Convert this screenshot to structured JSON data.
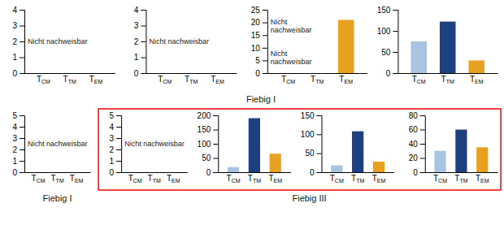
{
  "chart_data": [
    {
      "type": "bar",
      "categories": [
        "TCM",
        "TTM",
        "TEM"
      ],
      "ylim": [
        0,
        4
      ],
      "yticks": [
        0,
        1,
        2,
        3,
        4
      ],
      "annotations": [
        "Nicht nachweisbar"
      ],
      "xlabel": "Fiebig I"
    },
    {
      "type": "bar",
      "categories": [
        "TCM",
        "TTM",
        "TEM"
      ],
      "ylim": [
        0,
        4
      ],
      "yticks": [
        0,
        1,
        2,
        3,
        4
      ],
      "annotations": [
        "Nicht nachweisbar"
      ]
    },
    {
      "type": "bar",
      "categories": [
        "TCM",
        "TTM",
        "TEM"
      ],
      "values": [
        0,
        0,
        21
      ],
      "colors": [
        "#a8c4e0",
        "#1f4080",
        "#e8a020"
      ],
      "ylim": [
        0,
        25
      ],
      "yticks": [
        0,
        5,
        10,
        15,
        20,
        25
      ],
      "annotations": [
        "Nicht\nnachweisbar",
        "Nicht\nnachweisbar"
      ]
    },
    {
      "type": "bar",
      "categories": [
        "TCM",
        "TTM",
        "TEM"
      ],
      "values": [
        75,
        122,
        30
      ],
      "colors": [
        "#a8c4e0",
        "#1f4080",
        "#e8a020"
      ],
      "ylim": [
        0,
        150
      ],
      "yticks": [
        0,
        50,
        100,
        150
      ]
    },
    {
      "type": "bar",
      "categories": [
        "TCM",
        "TTM",
        "TEM"
      ],
      "ylim": [
        0,
        5
      ],
      "yticks": [
        0,
        1,
        2,
        3,
        4,
        5
      ],
      "annotations": [
        "Nicht nachweisbar"
      ],
      "xlabel": "Fiebig I"
    },
    {
      "type": "bar",
      "categories": [
        "TCM",
        "TTM",
        "TEM"
      ],
      "ylim": [
        0,
        5
      ],
      "yticks": [
        0,
        1,
        2,
        3,
        4,
        5
      ],
      "annotations": [
        "Nicht nachweisbar"
      ],
      "xlabel": "Fiebig III"
    },
    {
      "type": "bar",
      "categories": [
        "TCM",
        "TTM",
        "TEM"
      ],
      "values": [
        18,
        190,
        65
      ],
      "colors": [
        "#a8c4e0",
        "#1f4080",
        "#e8a020"
      ],
      "ylim": [
        0,
        200
      ],
      "yticks": [
        0,
        50,
        100,
        150,
        200
      ]
    },
    {
      "type": "bar",
      "categories": [
        "TCM",
        "TTM",
        "TEM"
      ],
      "values": [
        18,
        108,
        28
      ],
      "colors": [
        "#a8c4e0",
        "#1f4080",
        "#e8a020"
      ],
      "ylim": [
        0,
        150
      ],
      "yticks": [
        0,
        50,
        100,
        150
      ]
    },
    {
      "type": "bar",
      "categories": [
        "TCM",
        "TTM",
        "TEM"
      ],
      "values": [
        30,
        60,
        35
      ],
      "colors": [
        "#a8c4e0",
        "#1f4080",
        "#e8a020"
      ],
      "ylim": [
        0,
        80
      ],
      "yticks": [
        0,
        20,
        40,
        60,
        80
      ]
    }
  ]
}
